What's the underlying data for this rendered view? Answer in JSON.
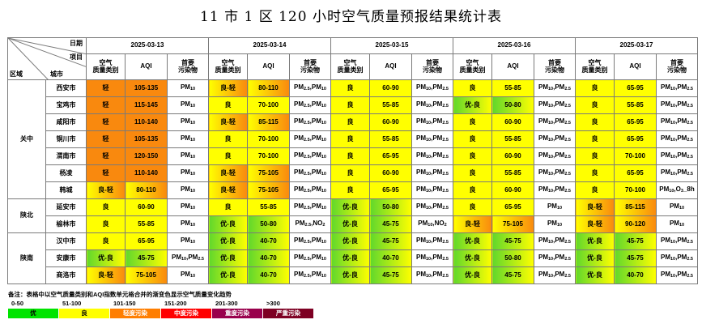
{
  "title": "11 市 1 区 120 小时空气质量预报结果统计表",
  "header": {
    "corner_date": "日期",
    "corner_item": "项目",
    "corner_region": "区域",
    "corner_city": "城市",
    "dates": [
      "2025-03-13",
      "2025-03-14",
      "2025-03-15",
      "2025-03-16",
      "2025-03-17"
    ],
    "col_category": "空气\n质量类别",
    "col_aqi": "AQI",
    "col_pollutant": "首要\n污染物"
  },
  "regions": [
    {
      "name": "关中",
      "rowspan": 7
    },
    {
      "name": "陕北",
      "rowspan": 2
    },
    {
      "name": "陕南",
      "rowspan": 3
    }
  ],
  "rows": [
    {
      "city": "西安市",
      "days": [
        {
          "cat": "轻",
          "aqi": "105-135",
          "pol": "PM10",
          "color": "o"
        },
        {
          "cat": "良-轻",
          "aqi": "80-110",
          "pol": "PM2.5,PM10",
          "color": "yo"
        },
        {
          "cat": "良",
          "aqi": "60-90",
          "pol": "PM10,PM2.5",
          "color": "y"
        },
        {
          "cat": "良",
          "aqi": "55-85",
          "pol": "PM10,PM2.5",
          "color": "y"
        },
        {
          "cat": "良",
          "aqi": "65-95",
          "pol": "PM10,PM2.5",
          "color": "y"
        }
      ]
    },
    {
      "city": "宝鸡市",
      "days": [
        {
          "cat": "轻",
          "aqi": "115-145",
          "pol": "PM10",
          "color": "o"
        },
        {
          "cat": "良",
          "aqi": "70-100",
          "pol": "PM2.5,PM10",
          "color": "y"
        },
        {
          "cat": "良",
          "aqi": "55-85",
          "pol": "PM10,PM2.5",
          "color": "y"
        },
        {
          "cat": "优-良",
          "aqi": "50-80",
          "pol": "PM10,PM2.5",
          "color": "gy"
        },
        {
          "cat": "良",
          "aqi": "55-85",
          "pol": "PM10,PM2.5",
          "color": "y"
        }
      ]
    },
    {
      "city": "咸阳市",
      "days": [
        {
          "cat": "轻",
          "aqi": "110-140",
          "pol": "PM10",
          "color": "o"
        },
        {
          "cat": "良-轻",
          "aqi": "85-115",
          "pol": "PM2.5,PM10",
          "color": "yo"
        },
        {
          "cat": "良",
          "aqi": "60-90",
          "pol": "PM10,PM2.5",
          "color": "y"
        },
        {
          "cat": "良",
          "aqi": "60-90",
          "pol": "PM10,PM2.5",
          "color": "y"
        },
        {
          "cat": "良",
          "aqi": "65-95",
          "pol": "PM10,PM2.5",
          "color": "y"
        }
      ]
    },
    {
      "city": "铜川市",
      "days": [
        {
          "cat": "轻",
          "aqi": "105-135",
          "pol": "PM10",
          "color": "o"
        },
        {
          "cat": "良",
          "aqi": "70-100",
          "pol": "PM2.5,PM10",
          "color": "y"
        },
        {
          "cat": "良",
          "aqi": "55-85",
          "pol": "PM10,PM2.5",
          "color": "y"
        },
        {
          "cat": "良",
          "aqi": "55-85",
          "pol": "PM10,PM2.5",
          "color": "y"
        },
        {
          "cat": "良",
          "aqi": "65-95",
          "pol": "PM10,PM2.5",
          "color": "y"
        }
      ]
    },
    {
      "city": "渭南市",
      "days": [
        {
          "cat": "轻",
          "aqi": "120-150",
          "pol": "PM10",
          "color": "o"
        },
        {
          "cat": "良",
          "aqi": "70-100",
          "pol": "PM2.5,PM10",
          "color": "y"
        },
        {
          "cat": "良",
          "aqi": "65-95",
          "pol": "PM10,PM2.5",
          "color": "y"
        },
        {
          "cat": "良",
          "aqi": "60-90",
          "pol": "PM10,PM2.5",
          "color": "y"
        },
        {
          "cat": "良",
          "aqi": "70-100",
          "pol": "PM10,PM2.5",
          "color": "y"
        }
      ]
    },
    {
      "city": "杨凌",
      "days": [
        {
          "cat": "轻",
          "aqi": "110-140",
          "pol": "PM10",
          "color": "o"
        },
        {
          "cat": "良-轻",
          "aqi": "75-105",
          "pol": "PM2.5,PM10",
          "color": "yo"
        },
        {
          "cat": "良",
          "aqi": "60-90",
          "pol": "PM10,PM2.5",
          "color": "y"
        },
        {
          "cat": "良",
          "aqi": "55-85",
          "pol": "PM10,PM2.5",
          "color": "y"
        },
        {
          "cat": "良",
          "aqi": "65-95",
          "pol": "PM10,PM2.5",
          "color": "y"
        }
      ]
    },
    {
      "city": "韩城",
      "days": [
        {
          "cat": "良-轻",
          "aqi": "80-110",
          "pol": "PM10",
          "color": "yo"
        },
        {
          "cat": "良-轻",
          "aqi": "75-105",
          "pol": "PM2.5,PM10",
          "color": "yo"
        },
        {
          "cat": "良",
          "aqi": "65-95",
          "pol": "PM10,PM2.5",
          "color": "y"
        },
        {
          "cat": "良",
          "aqi": "60-90",
          "pol": "PM10,PM2.5",
          "color": "y"
        },
        {
          "cat": "良",
          "aqi": "70-100",
          "pol": "PM10,O3_8h",
          "color": "y"
        }
      ]
    },
    {
      "city": "延安市",
      "days": [
        {
          "cat": "良",
          "aqi": "60-90",
          "pol": "PM10",
          "color": "y"
        },
        {
          "cat": "良",
          "aqi": "55-85",
          "pol": "PM2.5,PM10",
          "color": "y"
        },
        {
          "cat": "优-良",
          "aqi": "50-80",
          "pol": "PM10,PM2.5",
          "color": "gy"
        },
        {
          "cat": "良",
          "aqi": "65-95",
          "pol": "PM10",
          "color": "y"
        },
        {
          "cat": "良-轻",
          "aqi": "85-115",
          "pol": "PM10",
          "color": "yo"
        }
      ]
    },
    {
      "city": "榆林市",
      "days": [
        {
          "cat": "良",
          "aqi": "55-85",
          "pol": "PM10",
          "color": "y"
        },
        {
          "cat": "优-良",
          "aqi": "50-80",
          "pol": "PM2.5,NO2",
          "color": "gy"
        },
        {
          "cat": "优-良",
          "aqi": "45-75",
          "pol": "PM10,NO2",
          "color": "gy"
        },
        {
          "cat": "良-轻",
          "aqi": "75-105",
          "pol": "PM10",
          "color": "yo"
        },
        {
          "cat": "良-轻",
          "aqi": "90-120",
          "pol": "PM10",
          "color": "yo"
        }
      ]
    },
    {
      "city": "汉中市",
      "days": [
        {
          "cat": "良",
          "aqi": "65-95",
          "pol": "PM10",
          "color": "y"
        },
        {
          "cat": "优-良",
          "aqi": "40-70",
          "pol": "PM2.5,PM10",
          "color": "gy"
        },
        {
          "cat": "优-良",
          "aqi": "45-75",
          "pol": "PM10,PM2.5",
          "color": "gy"
        },
        {
          "cat": "优-良",
          "aqi": "45-75",
          "pol": "PM10,PM2.5",
          "color": "gy"
        },
        {
          "cat": "优-良",
          "aqi": "45-75",
          "pol": "PM10,PM2.5",
          "color": "gy"
        }
      ]
    },
    {
      "city": "安康市",
      "days": [
        {
          "cat": "优-良",
          "aqi": "45-75",
          "pol": "PM10,PM2.5",
          "color": "gy"
        },
        {
          "cat": "优-良",
          "aqi": "40-70",
          "pol": "PM2.5,PM10",
          "color": "gy"
        },
        {
          "cat": "优-良",
          "aqi": "40-70",
          "pol": "PM10,PM2.5",
          "color": "gy"
        },
        {
          "cat": "优-良",
          "aqi": "50-80",
          "pol": "PM10,PM2.5",
          "color": "gy"
        },
        {
          "cat": "优-良",
          "aqi": "45-75",
          "pol": "PM10,PM2.5",
          "color": "gy"
        }
      ]
    },
    {
      "city": "商洛市",
      "days": [
        {
          "cat": "良-轻",
          "aqi": "75-105",
          "pol": "PM10",
          "color": "yo"
        },
        {
          "cat": "优-良",
          "aqi": "40-70",
          "pol": "PM2.5,PM10",
          "color": "gy"
        },
        {
          "cat": "优-良",
          "aqi": "45-75",
          "pol": "PM10,PM2.5",
          "color": "gy"
        },
        {
          "cat": "优-良",
          "aqi": "45-75",
          "pol": "PM10,PM2.5",
          "color": "gy"
        },
        {
          "cat": "优-良",
          "aqi": "40-70",
          "pol": "PM10,PM2.5",
          "color": "gy"
        }
      ]
    }
  ],
  "legend": {
    "note": "备注：表格中以空气质量类别和AQI指数单元格合并的渐变色显示空气质量变化趋势",
    "ranges": [
      "0-50",
      "51-100",
      "101-150",
      "151-200",
      "201-300",
      ">300"
    ],
    "levels": [
      {
        "label": "优",
        "color": "#00e400",
        "text_color": "#000000"
      },
      {
        "label": "良",
        "color": "#ffff00",
        "text_color": "#000000"
      },
      {
        "label": "轻度污染",
        "color": "#ff7e00",
        "text_color": "#ffffff"
      },
      {
        "label": "中度污染",
        "color": "#ff0000",
        "text_color": "#ffffff"
      },
      {
        "label": "重度污染",
        "color": "#99004c",
        "text_color": "#ffffff"
      },
      {
        "label": "严重污染",
        "color": "#7e0023",
        "text_color": "#ffffff"
      }
    ]
  },
  "colors": {
    "good": "#ffff00",
    "excellent": "#61d82c",
    "light_pollution": "#f9890e"
  }
}
